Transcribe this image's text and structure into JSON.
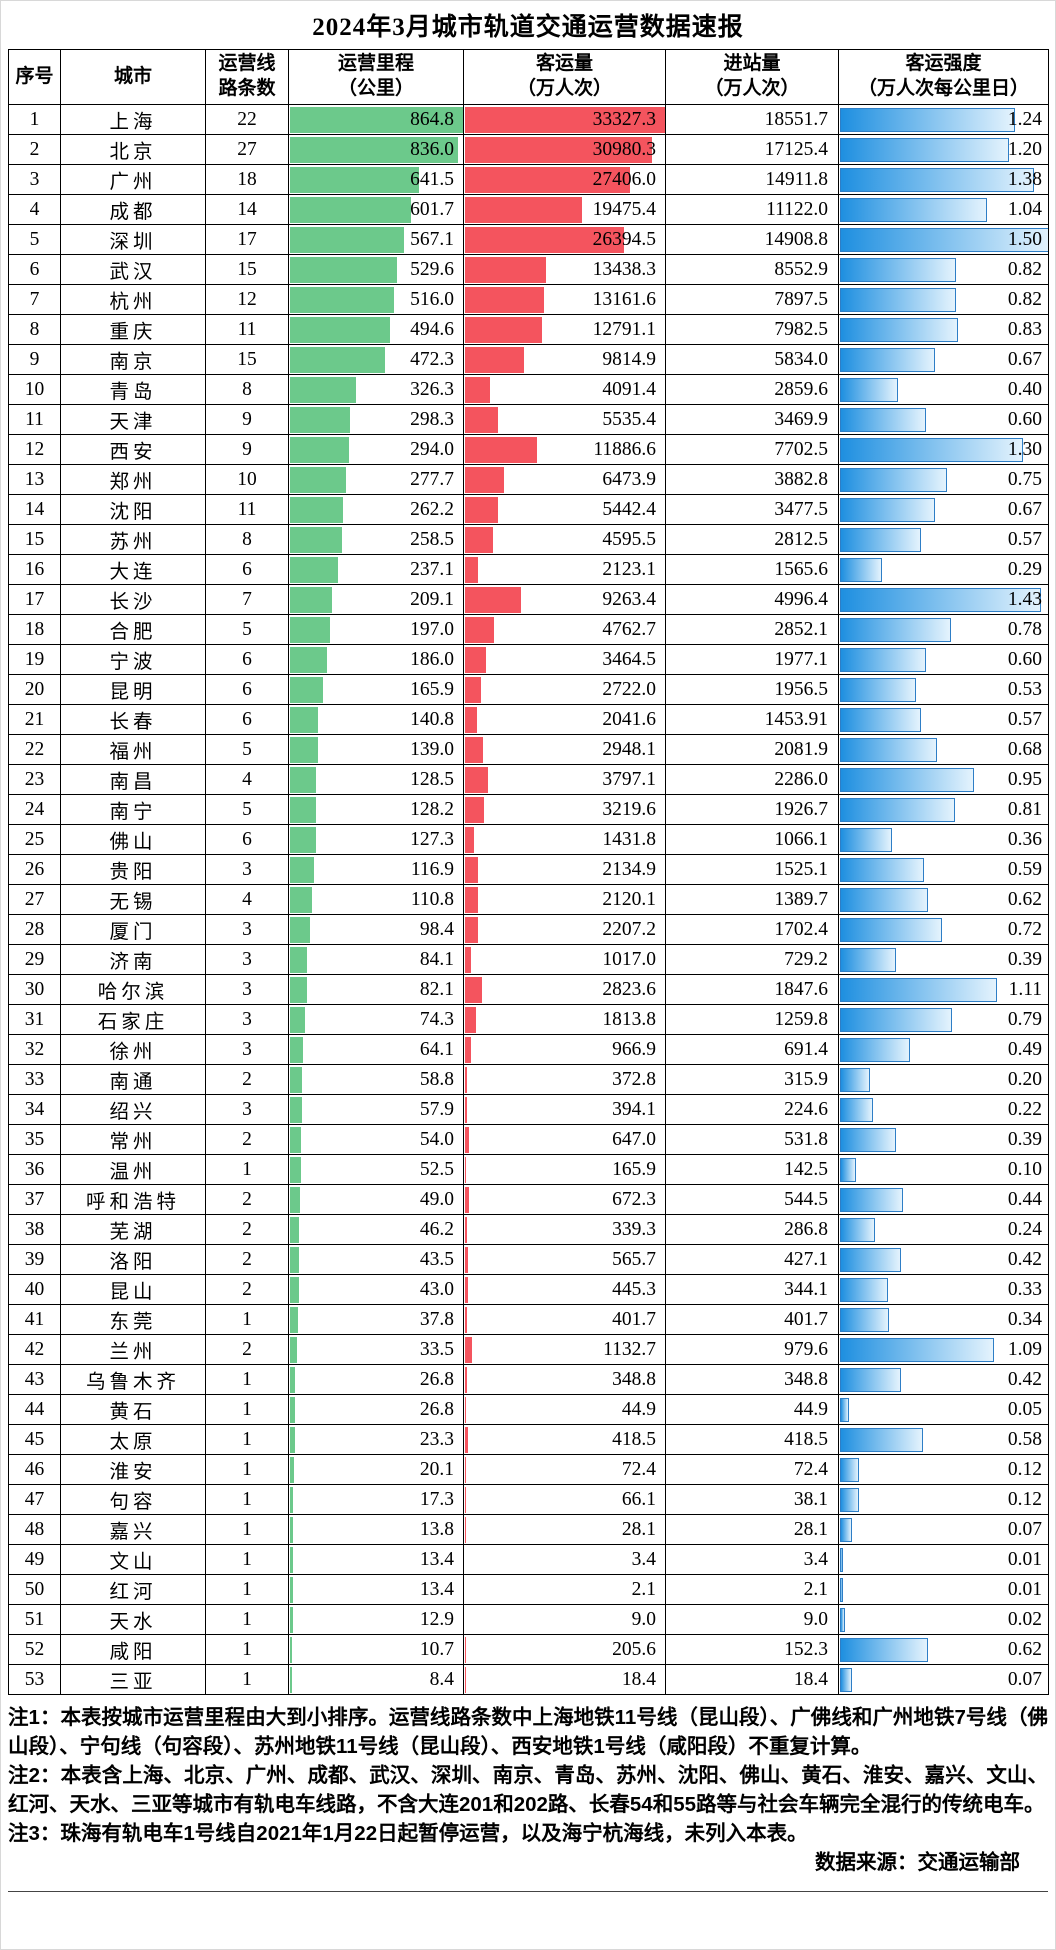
{
  "title": "2024年3月城市轨道交通运营数据速报",
  "header": {
    "cols": [
      {
        "lines": [
          "序号"
        ]
      },
      {
        "lines": [
          "城市"
        ]
      },
      {
        "lines": [
          "运营线",
          "路条数"
        ]
      },
      {
        "lines": [
          "运营里程",
          "（公里）"
        ]
      },
      {
        "lines": [
          "客运量",
          "（万人次）"
        ]
      },
      {
        "lines": [
          "进站量",
          "（万人次）"
        ]
      },
      {
        "lines": [
          "客运强度",
          "（万人次每公里日）"
        ]
      }
    ]
  },
  "colors": {
    "mileage_bar": "#6CC98B",
    "volume_bar": "#F4545E",
    "intensity_bar_start": "#1E8FE0",
    "intensity_bar_end": "#E4F3FD",
    "intensity_bar_border": "#2E7EC6"
  },
  "rows": [
    {
      "no": "1",
      "city": "上海",
      "lines": "22",
      "mileage": "864.8",
      "volume": "33327.3",
      "entries": "18551.7",
      "intensity": "1.24"
    },
    {
      "no": "2",
      "city": "北京",
      "lines": "27",
      "mileage": "836.0",
      "volume": "30980.3",
      "entries": "17125.4",
      "intensity": "1.20"
    },
    {
      "no": "3",
      "city": "广州",
      "lines": "18",
      "mileage": "641.5",
      "volume": "27406.0",
      "entries": "14911.8",
      "intensity": "1.38"
    },
    {
      "no": "4",
      "city": "成都",
      "lines": "14",
      "mileage": "601.7",
      "volume": "19475.4",
      "entries": "11122.0",
      "intensity": "1.04"
    },
    {
      "no": "5",
      "city": "深圳",
      "lines": "17",
      "mileage": "567.1",
      "volume": "26394.5",
      "entries": "14908.8",
      "intensity": "1.50"
    },
    {
      "no": "6",
      "city": "武汉",
      "lines": "15",
      "mileage": "529.6",
      "volume": "13438.3",
      "entries": "8552.9",
      "intensity": "0.82"
    },
    {
      "no": "7",
      "city": "杭州",
      "lines": "12",
      "mileage": "516.0",
      "volume": "13161.6",
      "entries": "7897.5",
      "intensity": "0.82"
    },
    {
      "no": "8",
      "city": "重庆",
      "lines": "11",
      "mileage": "494.6",
      "volume": "12791.1",
      "entries": "7982.5",
      "intensity": "0.83"
    },
    {
      "no": "9",
      "city": "南京",
      "lines": "15",
      "mileage": "472.3",
      "volume": "9814.9",
      "entries": "5834.0",
      "intensity": "0.67"
    },
    {
      "no": "10",
      "city": "青岛",
      "lines": "8",
      "mileage": "326.3",
      "volume": "4091.4",
      "entries": "2859.6",
      "intensity": "0.40"
    },
    {
      "no": "11",
      "city": "天津",
      "lines": "9",
      "mileage": "298.3",
      "volume": "5535.4",
      "entries": "3469.9",
      "intensity": "0.60"
    },
    {
      "no": "12",
      "city": "西安",
      "lines": "9",
      "mileage": "294.0",
      "volume": "11886.6",
      "entries": "7702.5",
      "intensity": "1.30"
    },
    {
      "no": "13",
      "city": "郑州",
      "lines": "10",
      "mileage": "277.7",
      "volume": "6473.9",
      "entries": "3882.8",
      "intensity": "0.75"
    },
    {
      "no": "14",
      "city": "沈阳",
      "lines": "11",
      "mileage": "262.2",
      "volume": "5442.4",
      "entries": "3477.5",
      "intensity": "0.67"
    },
    {
      "no": "15",
      "city": "苏州",
      "lines": "8",
      "mileage": "258.5",
      "volume": "4595.5",
      "entries": "2812.5",
      "intensity": "0.57"
    },
    {
      "no": "16",
      "city": "大连",
      "lines": "6",
      "mileage": "237.1",
      "volume": "2123.1",
      "entries": "1565.6",
      "intensity": "0.29"
    },
    {
      "no": "17",
      "city": "长沙",
      "lines": "7",
      "mileage": "209.1",
      "volume": "9263.4",
      "entries": "4996.4",
      "intensity": "1.43"
    },
    {
      "no": "18",
      "city": "合肥",
      "lines": "5",
      "mileage": "197.0",
      "volume": "4762.7",
      "entries": "2852.1",
      "intensity": "0.78"
    },
    {
      "no": "19",
      "city": "宁波",
      "lines": "6",
      "mileage": "186.0",
      "volume": "3464.5",
      "entries": "1977.1",
      "intensity": "0.60"
    },
    {
      "no": "20",
      "city": "昆明",
      "lines": "6",
      "mileage": "165.9",
      "volume": "2722.0",
      "entries": "1956.5",
      "intensity": "0.53"
    },
    {
      "no": "21",
      "city": "长春",
      "lines": "6",
      "mileage": "140.8",
      "volume": "2041.6",
      "entries": "1453.91",
      "intensity": "0.57"
    },
    {
      "no": "22",
      "city": "福州",
      "lines": "5",
      "mileage": "139.0",
      "volume": "2948.1",
      "entries": "2081.9",
      "intensity": "0.68"
    },
    {
      "no": "23",
      "city": "南昌",
      "lines": "4",
      "mileage": "128.5",
      "volume": "3797.1",
      "entries": "2286.0",
      "intensity": "0.95"
    },
    {
      "no": "24",
      "city": "南宁",
      "lines": "5",
      "mileage": "128.2",
      "volume": "3219.6",
      "entries": "1926.7",
      "intensity": "0.81"
    },
    {
      "no": "25",
      "city": "佛山",
      "lines": "6",
      "mileage": "127.3",
      "volume": "1431.8",
      "entries": "1066.1",
      "intensity": "0.36"
    },
    {
      "no": "26",
      "city": "贵阳",
      "lines": "3",
      "mileage": "116.9",
      "volume": "2134.9",
      "entries": "1525.1",
      "intensity": "0.59"
    },
    {
      "no": "27",
      "city": "无锡",
      "lines": "4",
      "mileage": "110.8",
      "volume": "2120.1",
      "entries": "1389.7",
      "intensity": "0.62"
    },
    {
      "no": "28",
      "city": "厦门",
      "lines": "3",
      "mileage": "98.4",
      "volume": "2207.2",
      "entries": "1702.4",
      "intensity": "0.72"
    },
    {
      "no": "29",
      "city": "济南",
      "lines": "3",
      "mileage": "84.1",
      "volume": "1017.0",
      "entries": "729.2",
      "intensity": "0.39"
    },
    {
      "no": "30",
      "city": "哈尔滨",
      "lines": "3",
      "mileage": "82.1",
      "volume": "2823.6",
      "entries": "1847.6",
      "intensity": "1.11"
    },
    {
      "no": "31",
      "city": "石家庄",
      "lines": "3",
      "mileage": "74.3",
      "volume": "1813.8",
      "entries": "1259.8",
      "intensity": "0.79"
    },
    {
      "no": "32",
      "city": "徐州",
      "lines": "3",
      "mileage": "64.1",
      "volume": "966.9",
      "entries": "691.4",
      "intensity": "0.49"
    },
    {
      "no": "33",
      "city": "南通",
      "lines": "2",
      "mileage": "58.8",
      "volume": "372.8",
      "entries": "315.9",
      "intensity": "0.20"
    },
    {
      "no": "34",
      "city": "绍兴",
      "lines": "3",
      "mileage": "57.9",
      "volume": "394.1",
      "entries": "224.6",
      "intensity": "0.22"
    },
    {
      "no": "35",
      "city": "常州",
      "lines": "2",
      "mileage": "54.0",
      "volume": "647.0",
      "entries": "531.8",
      "intensity": "0.39"
    },
    {
      "no": "36",
      "city": "温州",
      "lines": "1",
      "mileage": "52.5",
      "volume": "165.9",
      "entries": "142.5",
      "intensity": "0.10"
    },
    {
      "no": "37",
      "city": "呼和浩特",
      "lines": "2",
      "mileage": "49.0",
      "volume": "672.3",
      "entries": "544.5",
      "intensity": "0.44"
    },
    {
      "no": "38",
      "city": "芜湖",
      "lines": "2",
      "mileage": "46.2",
      "volume": "339.3",
      "entries": "286.8",
      "intensity": "0.24"
    },
    {
      "no": "39",
      "city": "洛阳",
      "lines": "2",
      "mileage": "43.5",
      "volume": "565.7",
      "entries": "427.1",
      "intensity": "0.42"
    },
    {
      "no": "40",
      "city": "昆山",
      "lines": "2",
      "mileage": "43.0",
      "volume": "445.3",
      "entries": "344.1",
      "intensity": "0.33"
    },
    {
      "no": "41",
      "city": "东莞",
      "lines": "1",
      "mileage": "37.8",
      "volume": "401.7",
      "entries": "401.7",
      "intensity": "0.34"
    },
    {
      "no": "42",
      "city": "兰州",
      "lines": "2",
      "mileage": "33.5",
      "volume": "1132.7",
      "entries": "979.6",
      "intensity": "1.09"
    },
    {
      "no": "43",
      "city": "乌鲁木齐",
      "lines": "1",
      "mileage": "26.8",
      "volume": "348.8",
      "entries": "348.8",
      "intensity": "0.42"
    },
    {
      "no": "44",
      "city": "黄石",
      "lines": "1",
      "mileage": "26.8",
      "volume": "44.9",
      "entries": "44.9",
      "intensity": "0.05"
    },
    {
      "no": "45",
      "city": "太原",
      "lines": "1",
      "mileage": "23.3",
      "volume": "418.5",
      "entries": "418.5",
      "intensity": "0.58"
    },
    {
      "no": "46",
      "city": "淮安",
      "lines": "1",
      "mileage": "20.1",
      "volume": "72.4",
      "entries": "72.4",
      "intensity": "0.12"
    },
    {
      "no": "47",
      "city": "句容",
      "lines": "1",
      "mileage": "17.3",
      "volume": "66.1",
      "entries": "38.1",
      "intensity": "0.12"
    },
    {
      "no": "48",
      "city": "嘉兴",
      "lines": "1",
      "mileage": "13.8",
      "volume": "28.1",
      "entries": "28.1",
      "intensity": "0.07"
    },
    {
      "no": "49",
      "city": "文山",
      "lines": "1",
      "mileage": "13.4",
      "volume": "3.4",
      "entries": "3.4",
      "intensity": "0.01"
    },
    {
      "no": "50",
      "city": "红河",
      "lines": "1",
      "mileage": "13.4",
      "volume": "2.1",
      "entries": "2.1",
      "intensity": "0.01"
    },
    {
      "no": "51",
      "city": "天水",
      "lines": "1",
      "mileage": "12.9",
      "volume": "9.0",
      "entries": "9.0",
      "intensity": "0.02"
    },
    {
      "no": "52",
      "city": "咸阳",
      "lines": "1",
      "mileage": "10.7",
      "volume": "205.6",
      "entries": "152.3",
      "intensity": "0.62"
    },
    {
      "no": "53",
      "city": "三亚",
      "lines": "1",
      "mileage": "8.4",
      "volume": "18.4",
      "entries": "18.4",
      "intensity": "0.07"
    }
  ],
  "notes": [
    "注1：本表按城市运营里程由大到小排序。运营线路条数中上海地铁11号线（昆山段）、广佛线和广州地铁7号线（佛山段）、宁句线（句容段）、苏州地铁11号线（昆山段）、西安地铁1号线（咸阳段）不重复计算。",
    "注2：本表含上海、北京、广州、成都、武汉、深圳、南京、青岛、苏州、沈阳、佛山、黄石、淮安、嘉兴、文山、红河、天水、三亚等城市有轨电车线路，不含大连201和202路、长春54和55路等与社会车辆完全混行的传统电车。",
    "注3：珠海有轨电车1号线自2021年1月22日起暂停运营，以及海宁杭海线，未列入本表。"
  ],
  "source": "数据来源：交通运输部"
}
